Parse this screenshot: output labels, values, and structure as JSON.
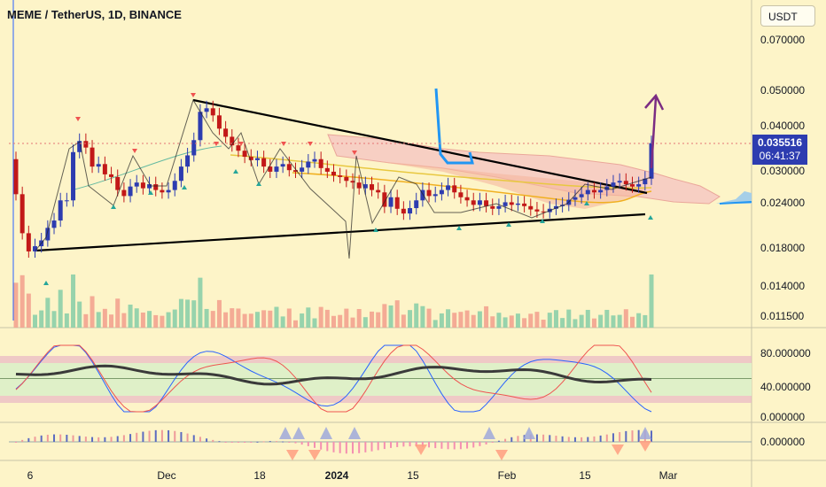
{
  "header": {
    "title": "MEME / TetherUS, 1D, BINANCE",
    "currency": "USDT"
  },
  "price_tag": {
    "price": "0.035516",
    "countdown": "06:41:37"
  },
  "colors": {
    "bg": "#fdf4c8",
    "up": "#2d3cb0",
    "down": "#c21818",
    "vol_up": "#8ccfa8",
    "vol_down": "#f3a38f",
    "cloud": "#f7c9c3",
    "trendline": "#000000",
    "arrow": "#7b2c83",
    "stoch_k": "#2962ff",
    "stoch_d": "#ef5350",
    "rsi": "#3a3a3a"
  },
  "chart_data": {
    "type": "candlestick",
    "symbol": "MEME / TetherUS",
    "interval": "1D",
    "exchange": "BINANCE",
    "y_scale": "log",
    "y_ticks": [
      "0.070000",
      "0.050000",
      "0.040000",
      "0.030000",
      "0.024000",
      "0.018000",
      "0.014000",
      "0.011500"
    ],
    "x_ticks": [
      "6",
      "Dec",
      "18",
      "2024",
      "15",
      "Feb",
      "15",
      "Mar"
    ],
    "last_price": 0.035516,
    "closes": [
      0.0255,
      0.0198,
      0.0176,
      0.0182,
      0.0189,
      0.0205,
      0.0215,
      0.0245,
      0.0245,
      0.0335,
      0.036,
      0.0345,
      0.0305,
      0.031,
      0.029,
      0.0285,
      0.0262,
      0.0252,
      0.0268,
      0.0275,
      0.0265,
      0.0272,
      0.0262,
      0.0258,
      0.0262,
      0.0278,
      0.0305,
      0.0328,
      0.0362,
      0.0435,
      0.0445,
      0.0425,
      0.039,
      0.037,
      0.035,
      0.0338,
      0.0325,
      0.0318,
      0.0322,
      0.0305,
      0.0295,
      0.0305,
      0.031,
      0.0298,
      0.0295,
      0.0303,
      0.0315,
      0.032,
      0.0302,
      0.0295,
      0.0288,
      0.0285,
      0.0278,
      0.0275,
      0.0265,
      0.0272,
      0.0262,
      0.0258,
      0.0235,
      0.025,
      0.0232,
      0.0225,
      0.0233,
      0.0245,
      0.0262,
      0.0252,
      0.0255,
      0.0262,
      0.027,
      0.0258,
      0.025,
      0.0245,
      0.0238,
      0.0245,
      0.0236,
      0.0232,
      0.0236,
      0.0242,
      0.0238,
      0.024,
      0.0236,
      0.0231,
      0.0228,
      0.0227,
      0.0232,
      0.0236,
      0.0238,
      0.0246,
      0.025,
      0.0255,
      0.0262,
      0.0258,
      0.0262,
      0.0268,
      0.0275,
      0.0278,
      0.0272,
      0.0268,
      0.0272,
      0.0282,
      0.0355
    ],
    "annotations": [
      "descending trendline",
      "ascending trendline",
      "ichimoku cloud",
      "upward arrow"
    ],
    "subplots": [
      {
        "name": "stochastic RSI",
        "y_ticks": [
          "80.000000",
          "40.000000",
          "0.000000"
        ],
        "bands": [
          20,
          80
        ]
      },
      {
        "name": "MACD histogram",
        "y_ticks": [
          "0.000000"
        ]
      }
    ]
  }
}
